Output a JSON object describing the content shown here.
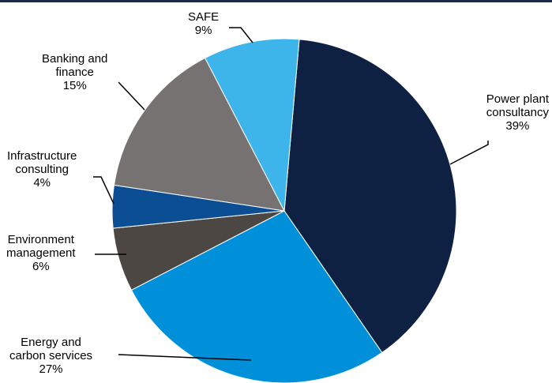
{
  "chart_data": {
    "type": "pie",
    "start_angle_deg": 5,
    "direction": "clockwise",
    "slices": [
      {
        "label_lines": [
          "Power plant",
          "consultancy"
        ],
        "pct": "39%",
        "value": 39,
        "color": "#0f2143"
      },
      {
        "label_lines": [
          "Energy and",
          "carbon services"
        ],
        "pct": "27%",
        "value": 27,
        "color": "#0090d9"
      },
      {
        "label_lines": [
          "Environment",
          "management"
        ],
        "pct": "6%",
        "value": 6,
        "color": "#4d4744"
      },
      {
        "label_lines": [
          "Infrastructure",
          "consulting"
        ],
        "pct": "4%",
        "value": 4,
        "color": "#0b4e93"
      },
      {
        "label_lines": [
          "Banking and",
          "finance"
        ],
        "pct": "15%",
        "value": 15,
        "color": "#757271"
      },
      {
        "label_lines": [
          "SAFE"
        ],
        "pct": "9%",
        "value": 9,
        "color": "#3db4ea"
      }
    ]
  },
  "style": {
    "top_rule_color": "#1c2b45",
    "leader_color": "#000000",
    "slice_border_color": "#ffffff"
  }
}
